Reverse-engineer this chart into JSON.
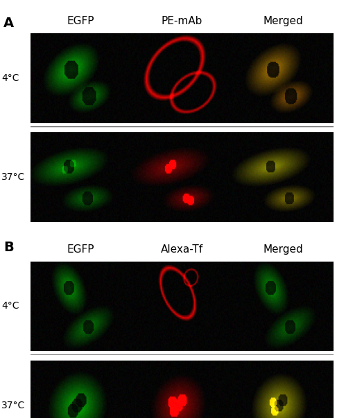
{
  "title": "",
  "background_color": "#ffffff",
  "section_A": {
    "label": "A",
    "col_headers": [
      "EGFP",
      "PE-mAb",
      "Merged"
    ],
    "row_labels": [
      "4°C",
      "37°C"
    ]
  },
  "section_B": {
    "label": "B",
    "col_headers": [
      "EGFP",
      "Alexa-Tf",
      "Merged"
    ],
    "row_labels": [
      "4°C",
      "37°C"
    ]
  },
  "divider_color": "#999999",
  "label_fontsize": 14,
  "header_fontsize": 11,
  "temp_fontsize": 10
}
